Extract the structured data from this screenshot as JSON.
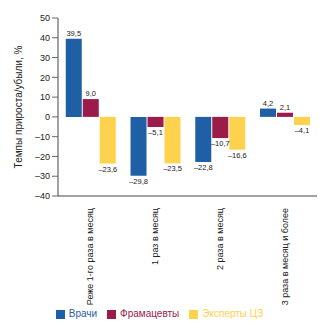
{
  "chart_data": {
    "type": "bar",
    "y_label": "Темпы прироста/убыли, %",
    "categories": [
      "Реже 1-го раза в месяц",
      "1 раз в месяц",
      "2 раза в месяц",
      "3 раза в месяц и более"
    ],
    "series": [
      {
        "name": "Врачи",
        "color": "#1f5fa6",
        "values": [
          39.5,
          -29.8,
          -22.8,
          4.2
        ],
        "value_labels": [
          "39,5",
          "–29,8",
          "–22,8",
          "4,2"
        ]
      },
      {
        "name": "Фрамацевты",
        "color": "#9b1b4a",
        "values": [
          9.0,
          -5.1,
          -10.7,
          2.1
        ],
        "value_labels": [
          "9,0",
          "–5,1",
          "–10,7",
          "2,1"
        ]
      },
      {
        "name": "Эксперты ЦЗ",
        "color": "#ffd24d",
        "values": [
          -23.6,
          -23.5,
          -16.6,
          -4.1
        ],
        "value_labels": [
          "–23,6",
          "–23,5",
          "–16,6",
          "–4,1"
        ]
      }
    ],
    "ylim": [
      -40,
      50
    ],
    "yticks": [
      {
        "value": -40,
        "label": "–40"
      },
      {
        "value": -30,
        "label": "–30"
      },
      {
        "value": -20,
        "label": "–20"
      },
      {
        "value": -10,
        "label": "–10"
      },
      0,
      10,
      20,
      30,
      40,
      50
    ],
    "grid": false,
    "legend": "bottom",
    "data_labels": true
  }
}
